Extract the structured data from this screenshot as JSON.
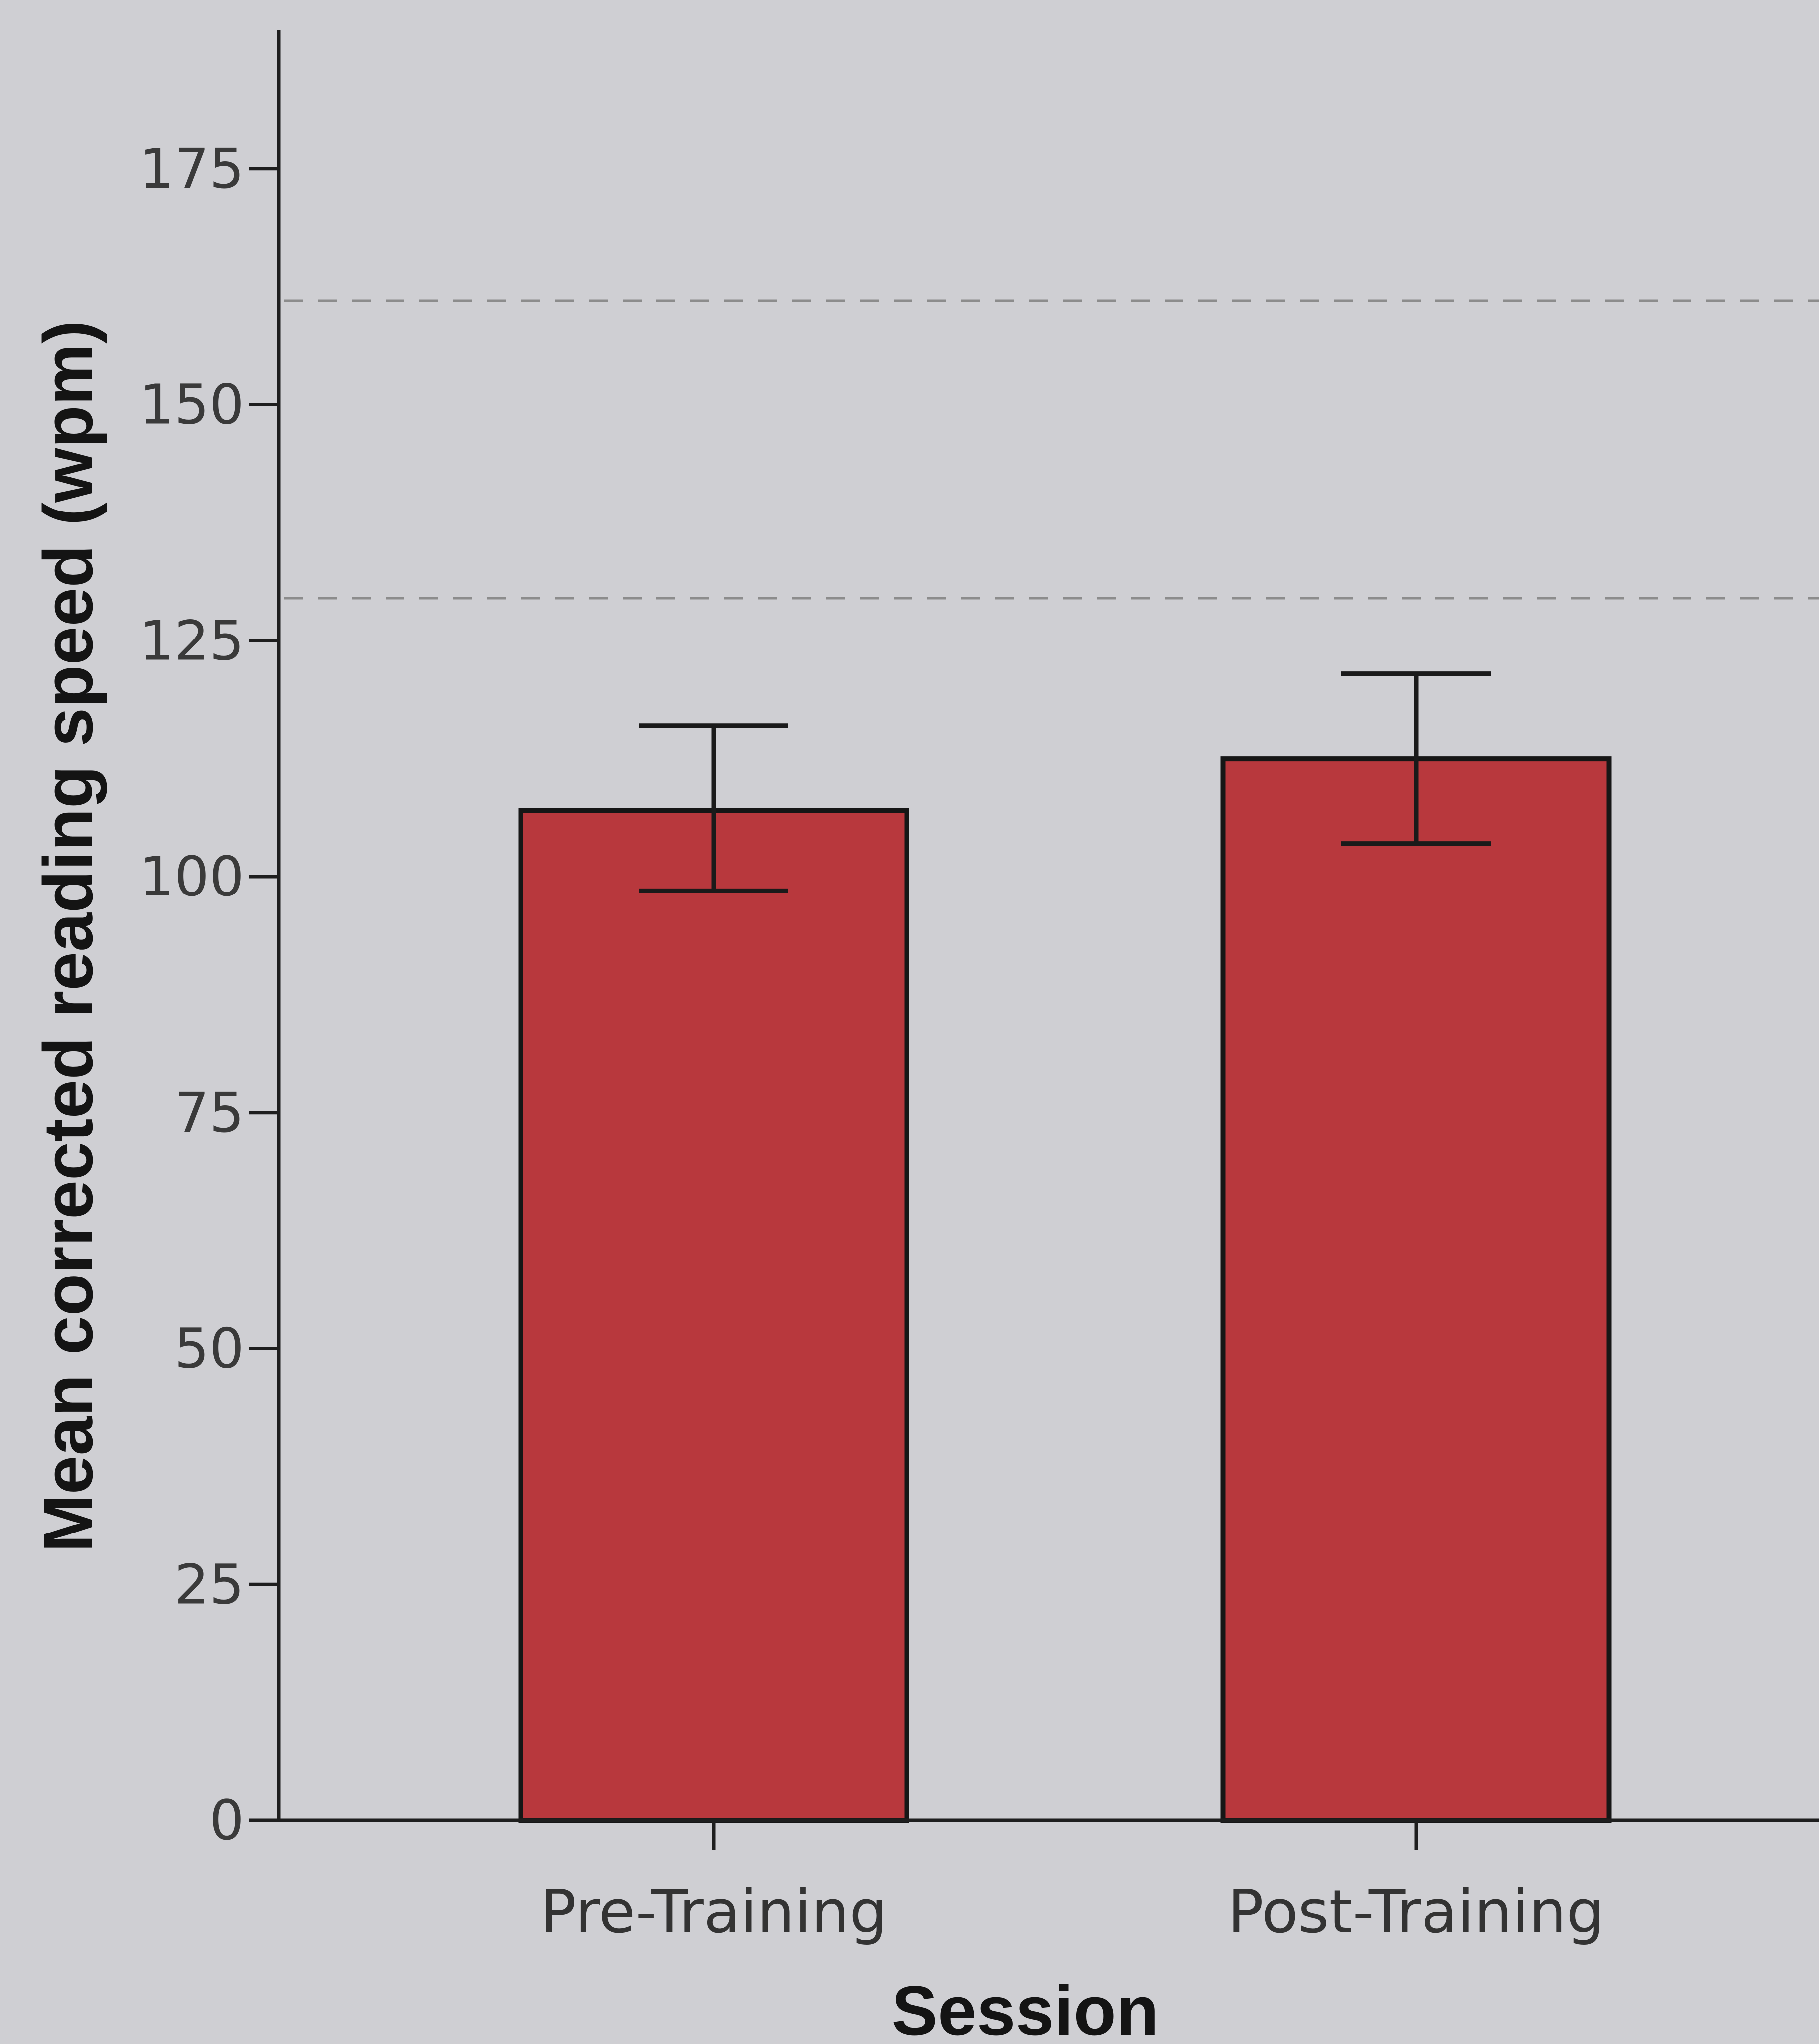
{
  "chart_data": {
    "type": "bar",
    "categories": [
      "Pre-Training",
      "Post-Training"
    ],
    "values": [
      107,
      112.5
    ],
    "error": [
      [
        98.5,
        116
      ],
      [
        103.5,
        121.5
      ]
    ],
    "reference_lines": [
      161,
      129.5
    ],
    "xlabel": "Session",
    "ylabel": "Mean corrected reading speed (wpm)",
    "ylim": [
      0,
      188
    ],
    "yticks": [
      0,
      25,
      50,
      75,
      100,
      125,
      150,
      175
    ],
    "bar_color": "#b8383d",
    "grid": false
  }
}
